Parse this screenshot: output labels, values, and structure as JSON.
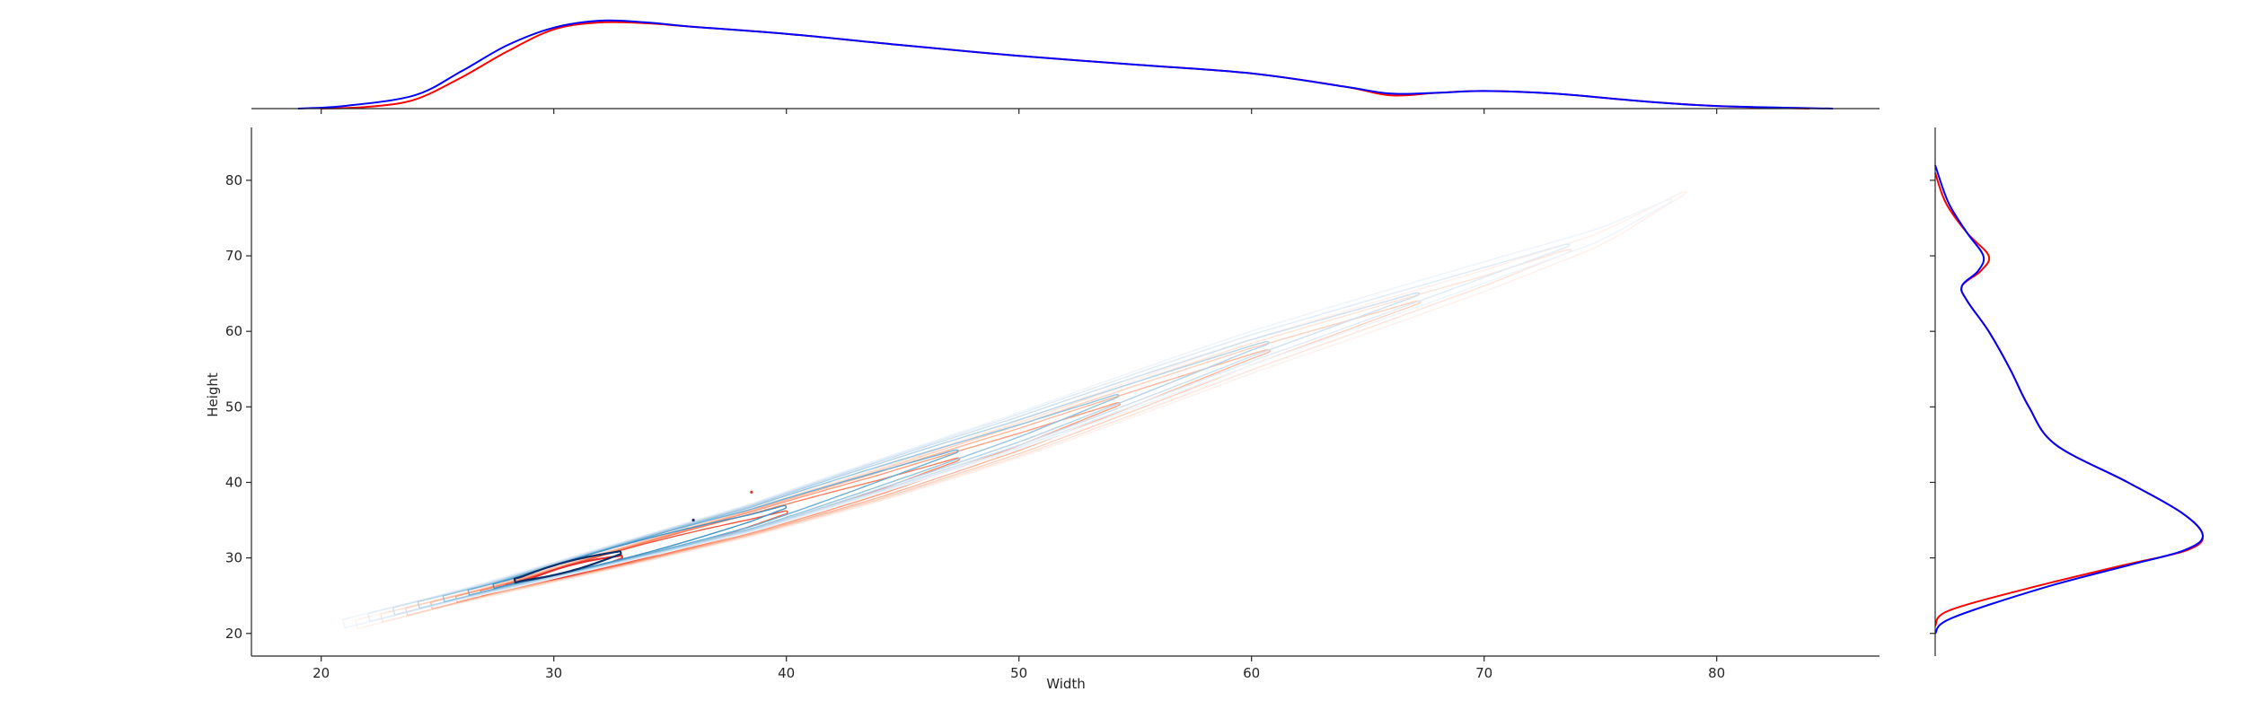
{
  "chart_data": {
    "type": "contour",
    "kind": "joint KDE plot with marginal density curves",
    "xlabel": "Width",
    "ylabel": "Height",
    "xlim": [
      17,
      87
    ],
    "ylim": [
      17,
      87
    ],
    "xticks": [
      20,
      30,
      40,
      50,
      60,
      70,
      80
    ],
    "yticks": [
      20,
      30,
      40,
      50,
      60,
      70,
      80
    ],
    "grid": false,
    "colors": {
      "red_group": "#ff0000",
      "blue_group": "#0000ff",
      "red_contours": "Reds",
      "blue_contours": "Blues"
    },
    "series": [
      {
        "color": "#ff0000",
        "ridge": [
          [
            21.5,
            21.5
          ],
          [
            28,
            26.5
          ],
          [
            33,
            30.5
          ],
          [
            38.5,
            35
          ],
          [
            44,
            40
          ],
          [
            50,
            46
          ],
          [
            55,
            51.5
          ],
          [
            60,
            57
          ],
          [
            65,
            62
          ],
          [
            70,
            67
          ],
          [
            75,
            72.5
          ],
          [
            78.5,
            78.5
          ]
        ],
        "peak": [
          38.5,
          38.7
        ],
        "marginal_x": [
          [
            20,
            0.0
          ],
          [
            22,
            0.02
          ],
          [
            24,
            0.1
          ],
          [
            26,
            0.35
          ],
          [
            28,
            0.65
          ],
          [
            30,
            0.9
          ],
          [
            32,
            0.98
          ],
          [
            34,
            0.97
          ],
          [
            36,
            0.93
          ],
          [
            40,
            0.85
          ],
          [
            45,
            0.72
          ],
          [
            50,
            0.6
          ],
          [
            55,
            0.5
          ],
          [
            60,
            0.4
          ],
          [
            64,
            0.25
          ],
          [
            66,
            0.15
          ],
          [
            68,
            0.18
          ],
          [
            70,
            0.2
          ],
          [
            73,
            0.17
          ],
          [
            77,
            0.08
          ],
          [
            80,
            0.03
          ],
          [
            84,
            0.0
          ]
        ],
        "marginal_y": [
          [
            21,
            0.0
          ],
          [
            23,
            0.05
          ],
          [
            26,
            0.35
          ],
          [
            29,
            0.7
          ],
          [
            31,
            0.94
          ],
          [
            33,
            1.0
          ],
          [
            36,
            0.92
          ],
          [
            40,
            0.72
          ],
          [
            45,
            0.45
          ],
          [
            50,
            0.35
          ],
          [
            55,
            0.28
          ],
          [
            60,
            0.2
          ],
          [
            64,
            0.12
          ],
          [
            66,
            0.1
          ],
          [
            68,
            0.17
          ],
          [
            70,
            0.2
          ],
          [
            73,
            0.12
          ],
          [
            77,
            0.04
          ],
          [
            81,
            0.0
          ]
        ]
      },
      {
        "color": "#0000ff",
        "ridge": [
          [
            21,
            21
          ],
          [
            27.5,
            26
          ],
          [
            33,
            30.5
          ],
          [
            38.5,
            35
          ],
          [
            44,
            40.5
          ],
          [
            50,
            46.5
          ],
          [
            55,
            52
          ],
          [
            60,
            57.5
          ],
          [
            65,
            62.5
          ],
          [
            70,
            67.5
          ],
          [
            75,
            72.5
          ],
          [
            78,
            77
          ]
        ],
        "peak": [
          36,
          35
        ],
        "marginal_x": [
          [
            19,
            0.0
          ],
          [
            21,
            0.03
          ],
          [
            24,
            0.15
          ],
          [
            26,
            0.42
          ],
          [
            28,
            0.72
          ],
          [
            30,
            0.92
          ],
          [
            32,
            1.0
          ],
          [
            34,
            0.98
          ],
          [
            36,
            0.93
          ],
          [
            40,
            0.85
          ],
          [
            45,
            0.72
          ],
          [
            50,
            0.6
          ],
          [
            55,
            0.5
          ],
          [
            60,
            0.4
          ],
          [
            64,
            0.25
          ],
          [
            66,
            0.17
          ],
          [
            68,
            0.18
          ],
          [
            70,
            0.2
          ],
          [
            73,
            0.17
          ],
          [
            77,
            0.08
          ],
          [
            80,
            0.03
          ],
          [
            85,
            0.0
          ]
        ],
        "marginal_y": [
          [
            20,
            0.0
          ],
          [
            22,
            0.06
          ],
          [
            26,
            0.4
          ],
          [
            29,
            0.72
          ],
          [
            31,
            0.93
          ],
          [
            33,
            1.0
          ],
          [
            36,
            0.92
          ],
          [
            40,
            0.72
          ],
          [
            45,
            0.45
          ],
          [
            50,
            0.35
          ],
          [
            55,
            0.28
          ],
          [
            60,
            0.2
          ],
          [
            64,
            0.12
          ],
          [
            66,
            0.1
          ],
          [
            68,
            0.16
          ],
          [
            70,
            0.18
          ],
          [
            73,
            0.12
          ],
          [
            77,
            0.05
          ],
          [
            82,
            0.0
          ]
        ]
      }
    ]
  }
}
